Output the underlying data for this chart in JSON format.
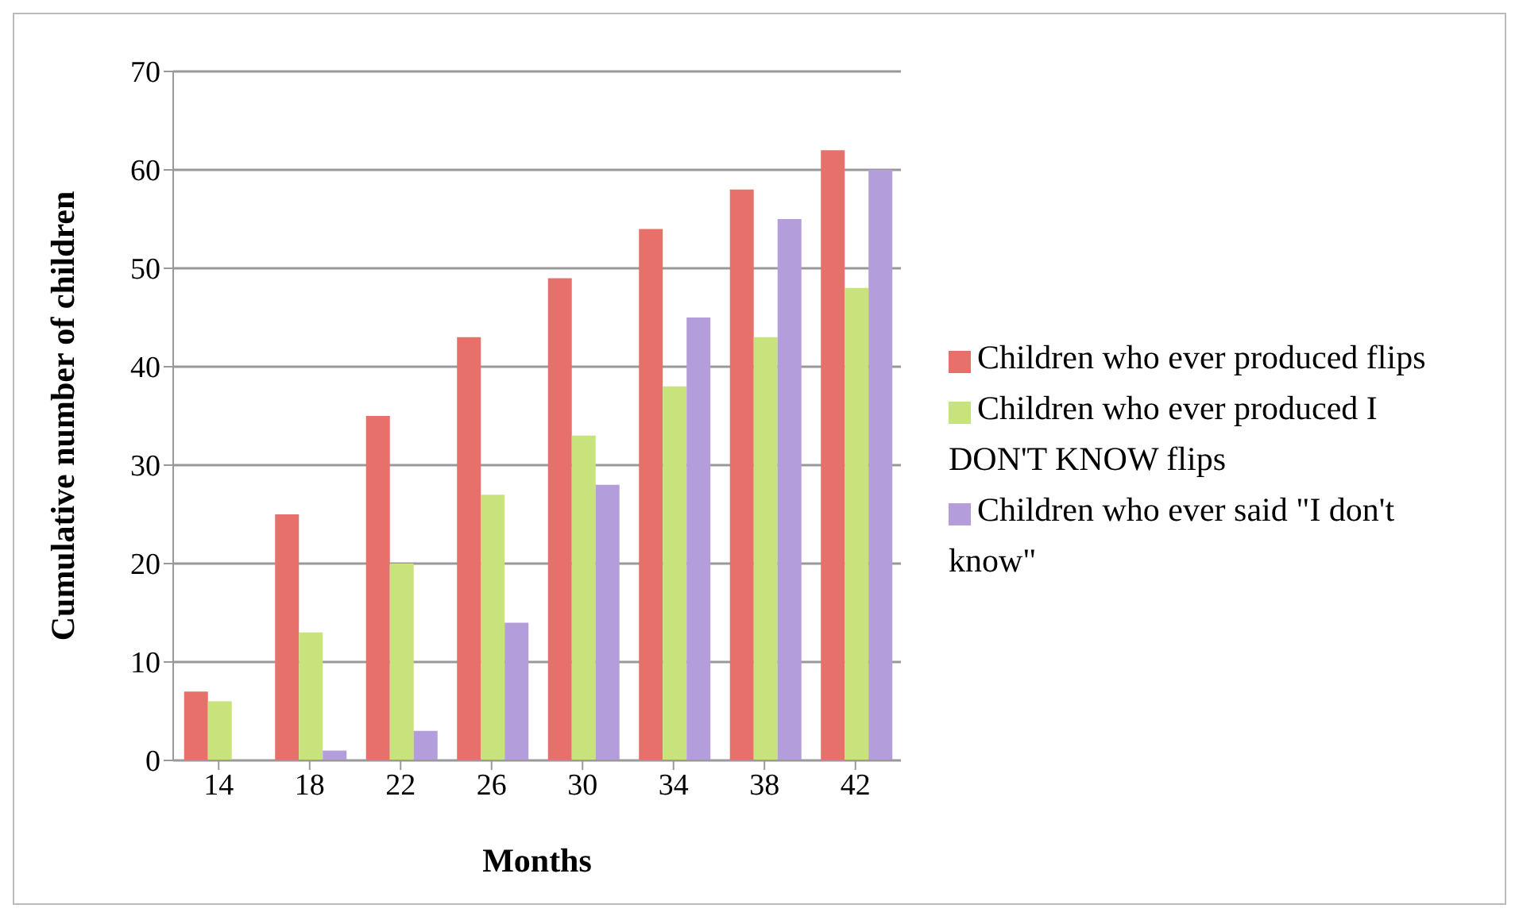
{
  "chart_data": {
    "type": "bar",
    "xlabel": "Months",
    "ylabel": "Cumulative number of children",
    "categories": [
      "14",
      "18",
      "22",
      "26",
      "30",
      "34",
      "38",
      "42"
    ],
    "series": [
      {
        "name": "Children who ever produced flips",
        "color": "#e8706a",
        "values": [
          7,
          25,
          35,
          43,
          49,
          54,
          58,
          62
        ]
      },
      {
        "name": "Children who ever produced I DON'T KNOW flips",
        "color": "#c8e27c",
        "values": [
          6,
          13,
          20,
          27,
          33,
          38,
          43,
          48
        ]
      },
      {
        "name": "Children who ever said \"I don't know\"",
        "color": "#b39ddb",
        "values": [
          0,
          1,
          3,
          14,
          28,
          45,
          55,
          60
        ]
      }
    ],
    "ylim": [
      0,
      70
    ],
    "yticks": [
      0,
      10,
      20,
      30,
      40,
      50,
      60,
      70
    ],
    "grid": "y",
    "legend": "right"
  }
}
